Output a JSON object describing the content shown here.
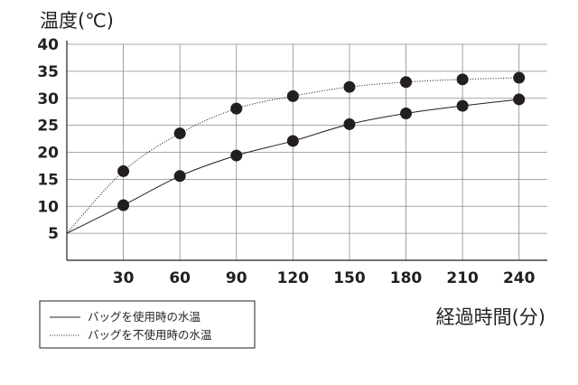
{
  "chart_data": {
    "type": "line",
    "ylabel": "温度(℃)",
    "xlabel": "経過時間(分)",
    "x": [
      0,
      30,
      60,
      90,
      120,
      150,
      180,
      210,
      240
    ],
    "xticks": [
      "30",
      "60",
      "90",
      "120",
      "150",
      "180",
      "210",
      "240"
    ],
    "xlim": [
      0,
      255
    ],
    "ylim": [
      0,
      40
    ],
    "yticks": [
      "5",
      "10",
      "15",
      "20",
      "25",
      "30",
      "35",
      "40"
    ],
    "grid": true,
    "legend_position": "bottom-left",
    "series": [
      {
        "name": "バッグを使用時の水温",
        "line_style": "solid",
        "values": [
          5,
          10.2,
          15.6,
          19.4,
          22.1,
          25.2,
          27.2,
          28.6,
          29.8
        ]
      },
      {
        "name": "バッグを不使用時の水温",
        "line_style": "dotted",
        "values": [
          5,
          16.5,
          23.5,
          28.1,
          30.4,
          32.1,
          33.0,
          33.5,
          33.8
        ]
      }
    ]
  }
}
